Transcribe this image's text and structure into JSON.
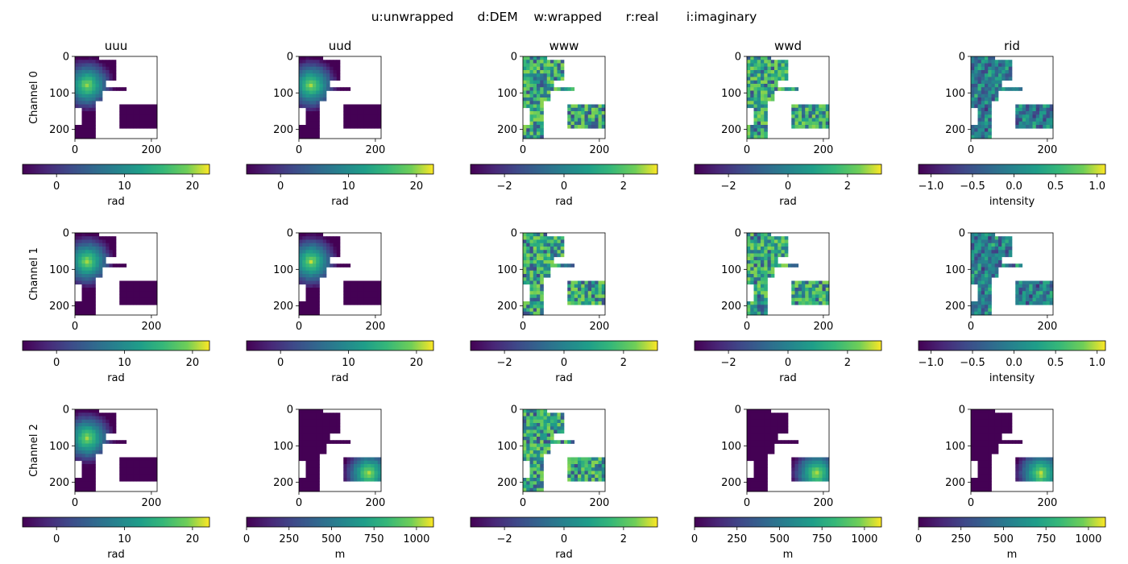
{
  "figure": {
    "suptitle": "u:unwrapped      d:DEM    w:wrapped      r:real       i:imaginary"
  },
  "chart_data": {
    "type": "heatmap",
    "layout": "3x5 grid of image panels with horizontal colorbars",
    "image_axes": {
      "xlim": [
        0,
        215
      ],
      "ylim": [
        225,
        0
      ],
      "xticks": [
        0,
        200
      ],
      "yticks": [
        0,
        100,
        200
      ]
    },
    "colormap": "viridis",
    "columns": [
      "uuu",
      "uud",
      "www",
      "wwd",
      "rid"
    ],
    "rows": [
      "Channel 0",
      "Channel 1",
      "Channel 2"
    ],
    "panels": [
      [
        {
          "kind": "unwrapped",
          "colorbar": {
            "label": "rad",
            "range": [
              -5,
              22.5
            ],
            "ticks": [
              0,
              10,
              20
            ],
            "tick_labels": [
              "0",
              "10",
              "20"
            ]
          }
        },
        {
          "kind": "unwrapped",
          "colorbar": {
            "label": "rad",
            "range": [
              -5,
              22.5
            ],
            "ticks": [
              0,
              10,
              20
            ],
            "tick_labels": [
              "0",
              "10",
              "20"
            ]
          }
        },
        {
          "kind": "wrapped",
          "colorbar": {
            "label": "rad",
            "range": [
              -3.14,
              3.14
            ],
            "ticks": [
              -2,
              0,
              2
            ],
            "tick_labels": [
              "−2",
              "0",
              "2"
            ]
          }
        },
        {
          "kind": "wrapped",
          "colorbar": {
            "label": "rad",
            "range": [
              -3.14,
              3.14
            ],
            "ticks": [
              -2,
              0,
              2
            ],
            "tick_labels": [
              "−2",
              "0",
              "2"
            ]
          }
        },
        {
          "kind": "intensity",
          "colorbar": {
            "label": "intensity",
            "range": [
              -1.15,
              1.1
            ],
            "ticks": [
              -1.0,
              -0.5,
              0.0,
              0.5,
              1.0
            ],
            "tick_labels": [
              "−1.0",
              "−0.5",
              "0.0",
              "0.5",
              "1.0"
            ]
          }
        }
      ],
      [
        {
          "kind": "unwrapped",
          "colorbar": {
            "label": "rad",
            "range": [
              -5,
              22.5
            ],
            "ticks": [
              0,
              10,
              20
            ],
            "tick_labels": [
              "0",
              "10",
              "20"
            ]
          }
        },
        {
          "kind": "unwrapped",
          "colorbar": {
            "label": "rad",
            "range": [
              -5,
              22.5
            ],
            "ticks": [
              0,
              10,
              20
            ],
            "tick_labels": [
              "0",
              "10",
              "20"
            ]
          }
        },
        {
          "kind": "wrapped",
          "colorbar": {
            "label": "rad",
            "range": [
              -3.14,
              3.14
            ],
            "ticks": [
              -2,
              0,
              2
            ],
            "tick_labels": [
              "−2",
              "0",
              "2"
            ]
          }
        },
        {
          "kind": "wrapped",
          "colorbar": {
            "label": "rad",
            "range": [
              -3.14,
              3.14
            ],
            "ticks": [
              -2,
              0,
              2
            ],
            "tick_labels": [
              "−2",
              "0",
              "2"
            ]
          }
        },
        {
          "kind": "intensity",
          "colorbar": {
            "label": "intensity",
            "range": [
              -1.15,
              1.1
            ],
            "ticks": [
              -1.0,
              -0.5,
              0.0,
              0.5,
              1.0
            ],
            "tick_labels": [
              "−1.0",
              "−0.5",
              "0.0",
              "0.5",
              "1.0"
            ]
          }
        }
      ],
      [
        {
          "kind": "unwrapped",
          "colorbar": {
            "label": "rad",
            "range": [
              -5,
              22.5
            ],
            "ticks": [
              0,
              10,
              20
            ],
            "tick_labels": [
              "0",
              "10",
              "20"
            ]
          }
        },
        {
          "kind": "dem",
          "colorbar": {
            "label": "m",
            "range": [
              0,
              1100
            ],
            "ticks": [
              0,
              250,
              500,
              750,
              1000
            ],
            "tick_labels": [
              "0",
              "250",
              "500",
              "750",
              "1000"
            ]
          }
        },
        {
          "kind": "wrapped",
          "colorbar": {
            "label": "rad",
            "range": [
              -3.14,
              3.14
            ],
            "ticks": [
              -2,
              0,
              2
            ],
            "tick_labels": [
              "−2",
              "0",
              "2"
            ]
          }
        },
        {
          "kind": "dem",
          "colorbar": {
            "label": "m",
            "range": [
              0,
              1100
            ],
            "ticks": [
              0,
              250,
              500,
              750,
              1000
            ],
            "tick_labels": [
              "0",
              "250",
              "500",
              "750",
              "1000"
            ]
          }
        },
        {
          "kind": "dem",
          "colorbar": {
            "label": "m",
            "range": [
              0,
              1100
            ],
            "ticks": [
              0,
              250,
              500,
              750,
              1000
            ],
            "tick_labels": [
              "0",
              "250",
              "500",
              "750",
              "1000"
            ]
          }
        }
      ]
    ]
  }
}
